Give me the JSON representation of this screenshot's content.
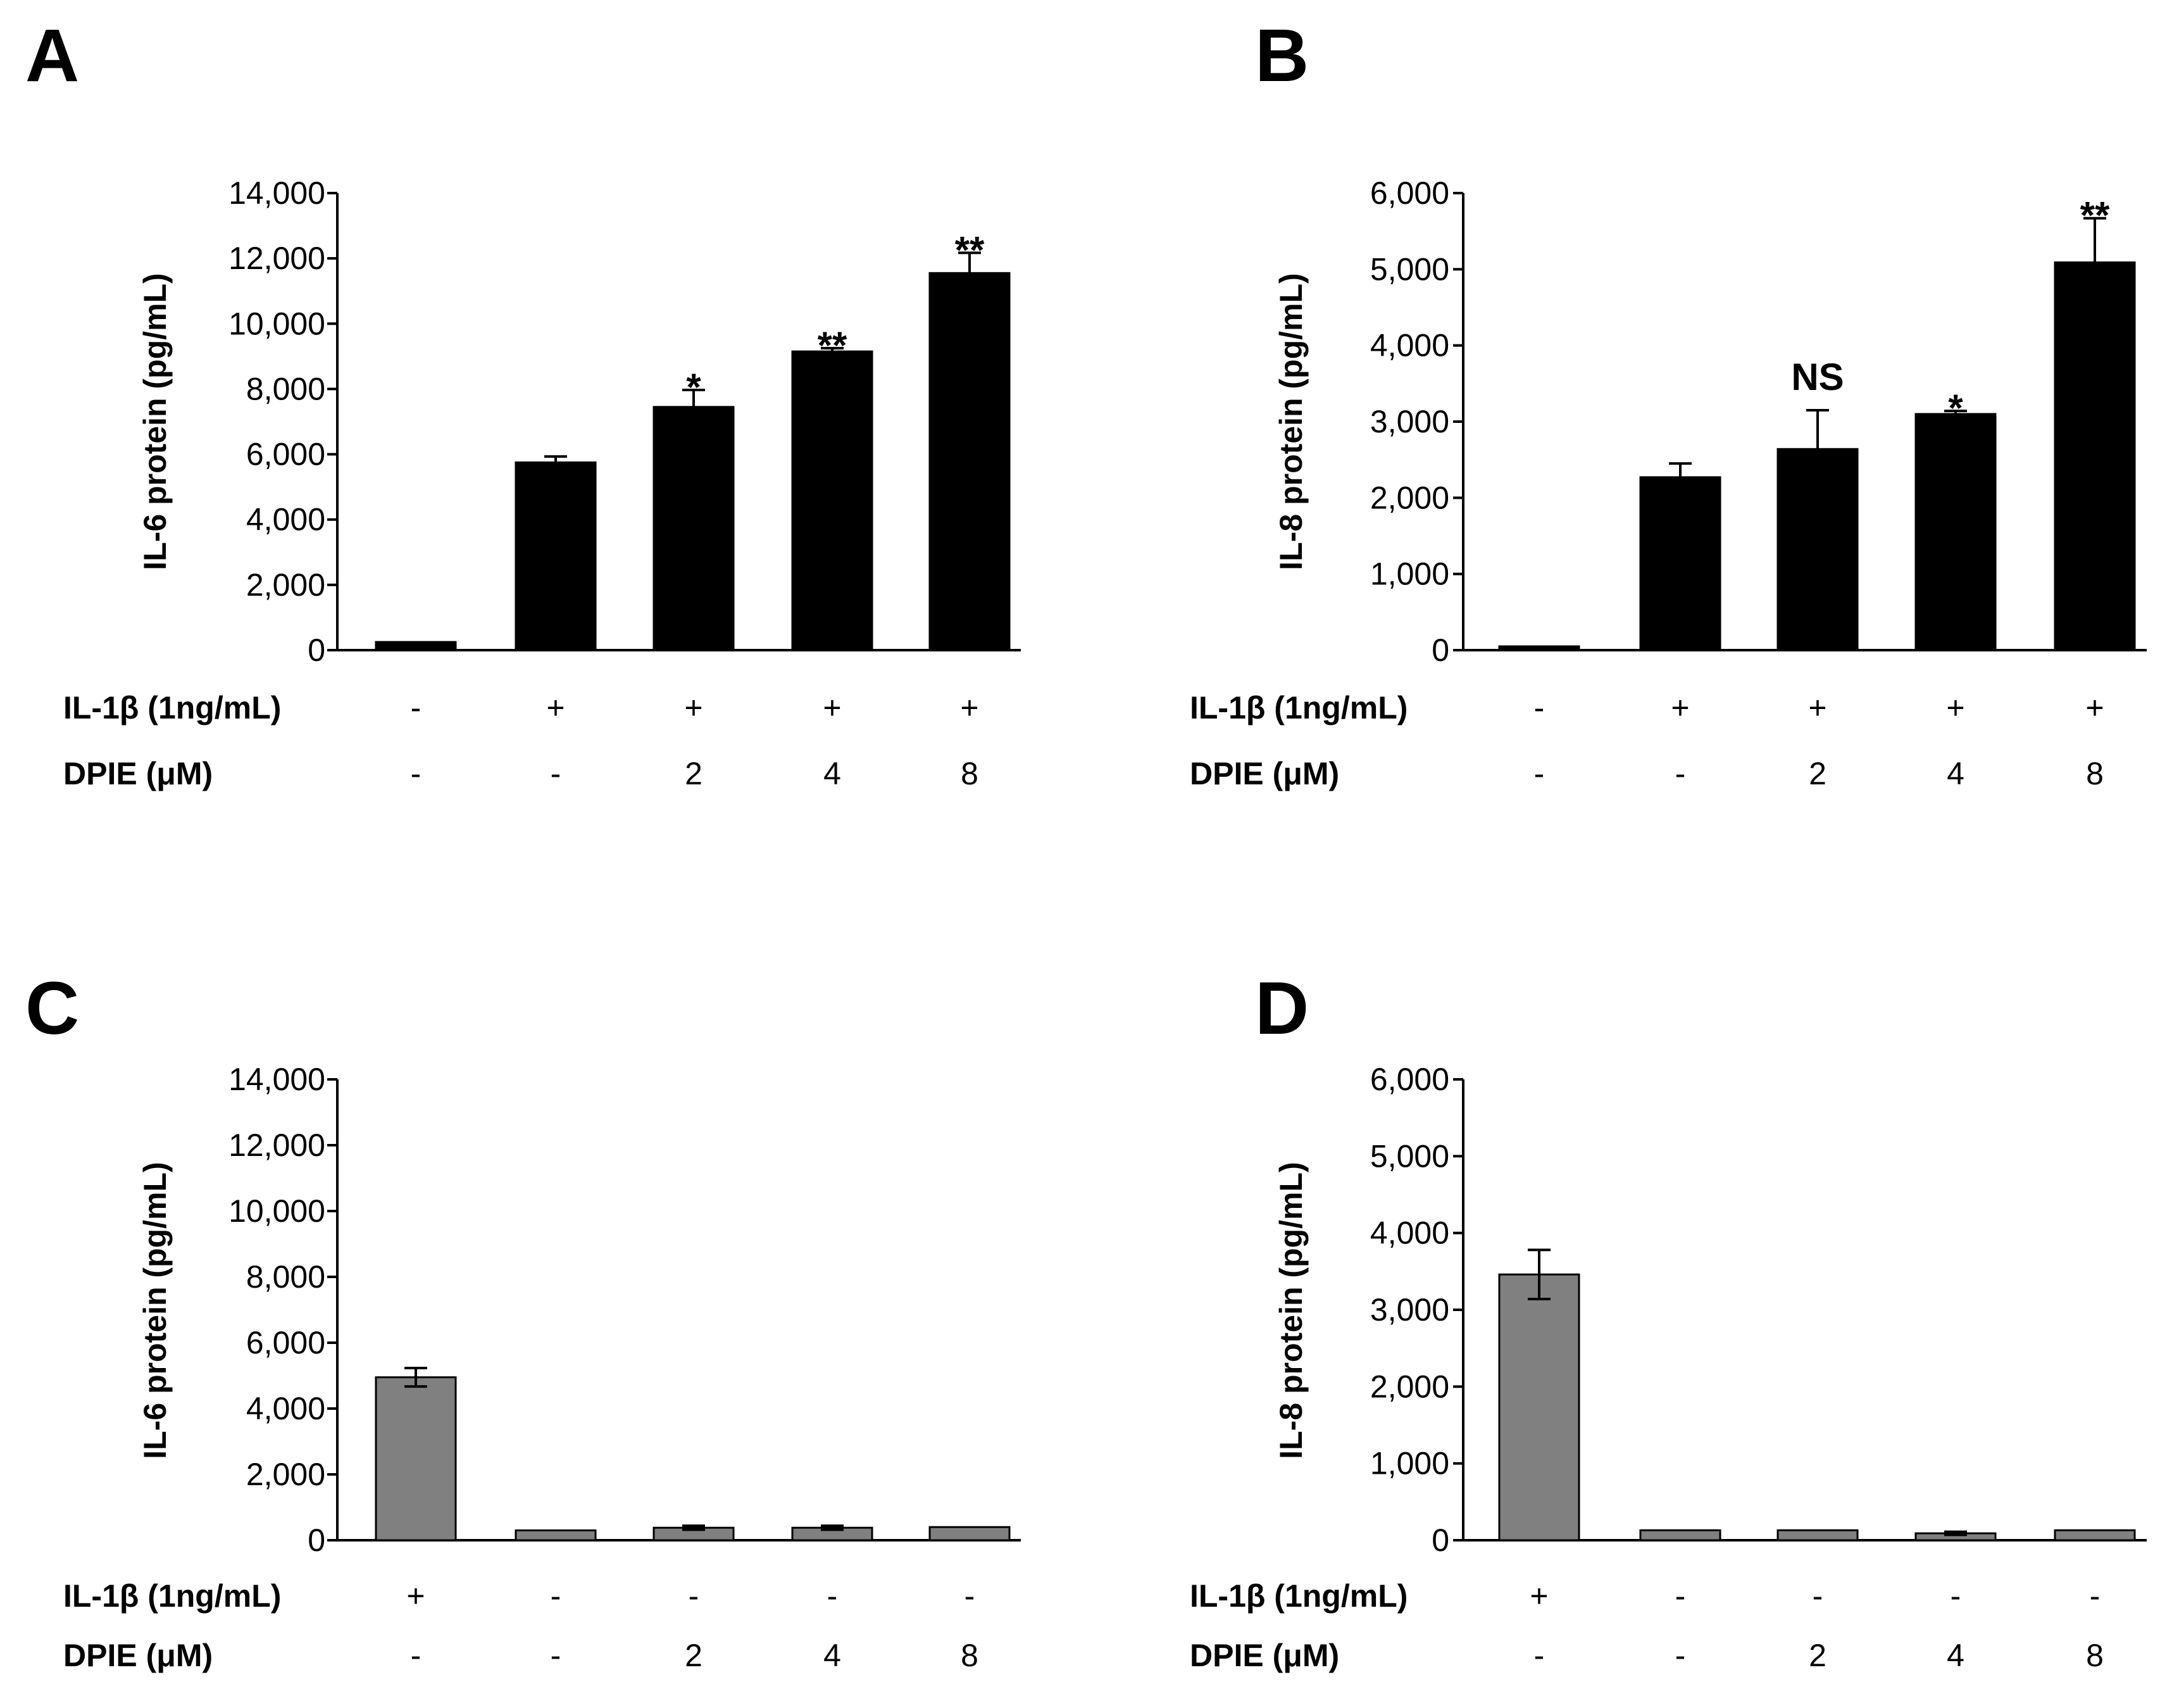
{
  "chart_data": [
    {
      "panel": "A",
      "type": "bar",
      "ylabel": "IL-6 protein (pg/mL)",
      "ylim": [
        0,
        14000
      ],
      "yticks": [
        0,
        2000,
        4000,
        6000,
        8000,
        10000,
        12000,
        14000
      ],
      "ytick_labels": [
        "0",
        "2,000",
        "4,000",
        "6,000",
        "8,000",
        "10,000",
        "12,000",
        "14,000"
      ],
      "values": [
        250,
        5750,
        7450,
        9150,
        11550
      ],
      "errors": [
        0,
        180,
        520,
        100,
        620
      ],
      "bar_color": "#000000",
      "annotations": [
        "",
        "",
        "*",
        "**",
        "**"
      ],
      "conditions": [
        {
          "name": "IL-1β (1ng/mL)",
          "values": [
            "-",
            "+",
            "+",
            "+",
            "+"
          ]
        },
        {
          "name": "DPIE  (μM)",
          "values": [
            "-",
            "-",
            "2",
            "4",
            "8"
          ]
        }
      ],
      "grid": false
    },
    {
      "panel": "B",
      "type": "bar",
      "ylabel": "IL-8 protein (pg/mL)",
      "ylim": [
        0,
        6000
      ],
      "yticks": [
        0,
        1000,
        2000,
        3000,
        4000,
        5000,
        6000
      ],
      "ytick_labels": [
        "0",
        "1,000",
        "2,000",
        "3,000",
        "4,000",
        "5,000",
        "6,000"
      ],
      "values": [
        50,
        2270,
        2640,
        3100,
        5090
      ],
      "errors": [
        0,
        180,
        510,
        40,
        580
      ],
      "bar_color": "#000000",
      "annotations": [
        "",
        "",
        "NS",
        "*",
        "**"
      ],
      "conditions": [
        {
          "name": "IL-1β (1ng/mL)",
          "values": [
            "-",
            "+",
            "+",
            "+",
            "+"
          ]
        },
        {
          "name": "DPIE  (μM)",
          "values": [
            "-",
            "-",
            "2",
            "4",
            "8"
          ]
        }
      ],
      "grid": false
    },
    {
      "panel": "C",
      "type": "bar",
      "ylabel": "IL-6 protein (pg/mL)",
      "ylim": [
        0,
        14000
      ],
      "yticks": [
        0,
        2000,
        4000,
        6000,
        8000,
        10000,
        12000,
        14000
      ],
      "ytick_labels": [
        "0",
        "2,000",
        "4,000",
        "6,000",
        "8,000",
        "10,000",
        "12,000",
        "14,000"
      ],
      "values": [
        4950,
        300,
        380,
        380,
        400
      ],
      "errors": [
        280,
        0,
        60,
        60,
        0
      ],
      "bar_color": "#808080",
      "annotations": [
        "",
        "",
        "",
        "",
        ""
      ],
      "conditions": [
        {
          "name": "IL-1β (1ng/mL)",
          "values": [
            "+",
            "-",
            "-",
            "-",
            "-"
          ]
        },
        {
          "name": "DPIE  (μM)",
          "values": [
            "-",
            "-",
            "2",
            "4",
            "8"
          ]
        }
      ],
      "grid": false
    },
    {
      "panel": "D",
      "type": "bar",
      "ylabel": "IL-8 protein (pg/mL)",
      "ylim": [
        0,
        6000
      ],
      "yticks": [
        0,
        1000,
        2000,
        3000,
        4000,
        5000,
        6000
      ],
      "ytick_labels": [
        "0",
        "1,000",
        "2,000",
        "3,000",
        "4,000",
        "5,000",
        "6,000"
      ],
      "values": [
        3460,
        130,
        130,
        90,
        130
      ],
      "errors": [
        320,
        0,
        0,
        20,
        0
      ],
      "bar_color": "#808080",
      "annotations": [
        "",
        "",
        "",
        "",
        ""
      ],
      "conditions": [
        {
          "name": "IL-1β (1ng/mL)",
          "values": [
            "+",
            "-",
            "-",
            "-",
            "-"
          ]
        },
        {
          "name": "DPIE  (μM)",
          "values": [
            "-",
            "-",
            "2",
            "4",
            "8"
          ]
        }
      ],
      "grid": false
    }
  ]
}
